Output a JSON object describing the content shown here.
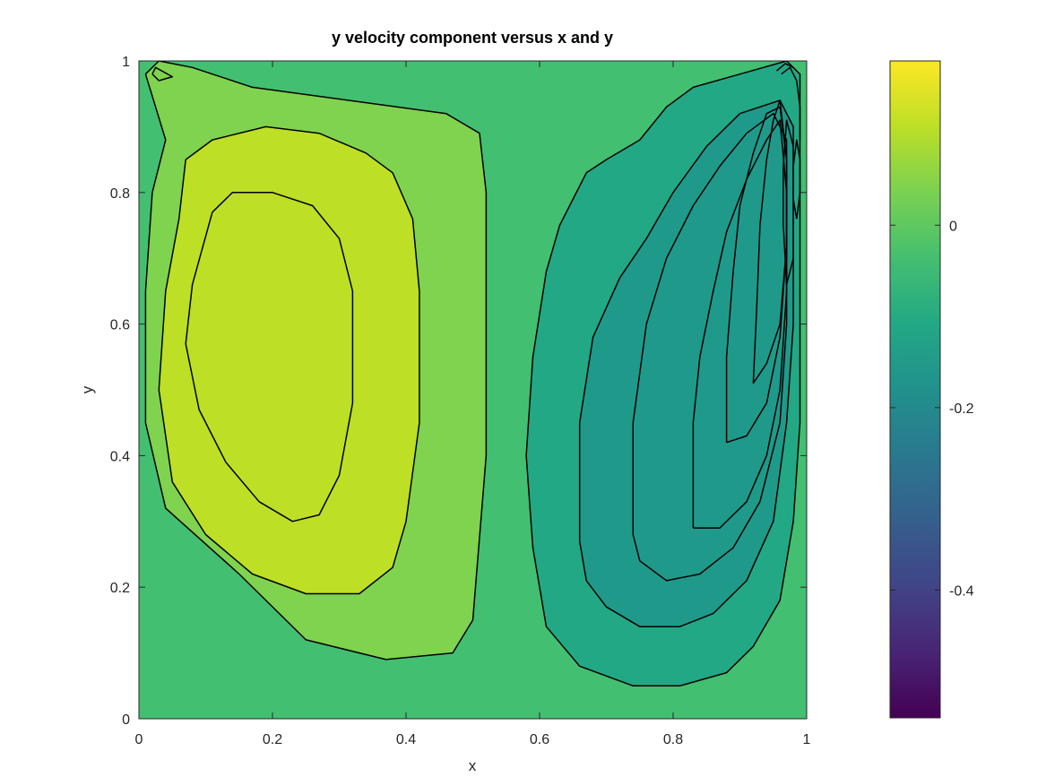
{
  "chart_data": {
    "type": "heatmap",
    "subtype": "filled-contour",
    "title": "y velocity component versus x and y",
    "xlabel": "x",
    "ylabel": "y",
    "xlim": [
      0,
      1
    ],
    "ylim": [
      0,
      1
    ],
    "xticks": [
      0,
      0.2,
      0.4,
      0.6,
      0.8,
      1
    ],
    "yticks": [
      0,
      0.2,
      0.4,
      0.6,
      0.8,
      1
    ],
    "xtick_labels": [
      "0",
      "0.2",
      "0.4",
      "0.6",
      "0.8",
      "1"
    ],
    "ytick_labels": [
      "0",
      "0.2",
      "0.4",
      "0.6",
      "0.8",
      "1"
    ],
    "colormap": "viridis",
    "colorbar": {
      "limits": [
        -0.54,
        0.18
      ],
      "ticks": [
        0,
        -0.2,
        -0.4
      ],
      "tick_labels": [
        "0",
        "-0.2",
        "-0.4"
      ]
    },
    "background_level_color": "#43bf71",
    "regions": [
      {
        "name": "positive-outer",
        "color": "#7fd34e",
        "points": [
          [
            0.01,
            0.98
          ],
          [
            0.03,
            1.0
          ],
          [
            0.08,
            0.99
          ],
          [
            0.17,
            0.96
          ],
          [
            0.46,
            0.92
          ],
          [
            0.51,
            0.89
          ],
          [
            0.52,
            0.8
          ],
          [
            0.52,
            0.4
          ],
          [
            0.5,
            0.15
          ],
          [
            0.47,
            0.1
          ],
          [
            0.37,
            0.09
          ],
          [
            0.25,
            0.12
          ],
          [
            0.15,
            0.22
          ],
          [
            0.04,
            0.32
          ],
          [
            0.01,
            0.45
          ],
          [
            0.01,
            0.65
          ],
          [
            0.02,
            0.8
          ],
          [
            0.04,
            0.88
          ],
          [
            0.01,
            0.98
          ]
        ]
      },
      {
        "name": "positive-mid",
        "color": "#bddf26",
        "points": [
          [
            0.07,
            0.85
          ],
          [
            0.11,
            0.88
          ],
          [
            0.19,
            0.9
          ],
          [
            0.27,
            0.89
          ],
          [
            0.34,
            0.86
          ],
          [
            0.38,
            0.83
          ],
          [
            0.41,
            0.76
          ],
          [
            0.42,
            0.65
          ],
          [
            0.42,
            0.45
          ],
          [
            0.4,
            0.3
          ],
          [
            0.38,
            0.23
          ],
          [
            0.33,
            0.19
          ],
          [
            0.25,
            0.19
          ],
          [
            0.17,
            0.22
          ],
          [
            0.1,
            0.28
          ],
          [
            0.05,
            0.36
          ],
          [
            0.03,
            0.5
          ],
          [
            0.04,
            0.65
          ],
          [
            0.06,
            0.76
          ],
          [
            0.07,
            0.85
          ]
        ]
      },
      {
        "name": "negative-outer",
        "color": "#22a884",
        "points": [
          [
            0.59,
            0.26
          ],
          [
            0.61,
            0.14
          ],
          [
            0.66,
            0.08
          ],
          [
            0.74,
            0.05
          ],
          [
            0.81,
            0.05
          ],
          [
            0.88,
            0.07
          ],
          [
            0.92,
            0.11
          ],
          [
            0.96,
            0.18
          ],
          [
            0.98,
            0.3
          ],
          [
            0.99,
            0.45
          ],
          [
            0.99,
            0.7
          ],
          [
            0.99,
            0.88
          ],
          [
            0.99,
            0.98
          ],
          [
            0.97,
            1.0
          ],
          [
            0.9,
            0.98
          ],
          [
            0.83,
            0.96
          ],
          [
            0.79,
            0.93
          ],
          [
            0.75,
            0.88
          ],
          [
            0.7,
            0.85
          ],
          [
            0.67,
            0.83
          ],
          [
            0.65,
            0.79
          ],
          [
            0.63,
            0.75
          ],
          [
            0.61,
            0.68
          ],
          [
            0.59,
            0.55
          ],
          [
            0.58,
            0.4
          ],
          [
            0.59,
            0.26
          ]
        ]
      },
      {
        "name": "negative-mid",
        "color": "#1f9a8a",
        "points": [
          [
            0.66,
            0.27
          ],
          [
            0.67,
            0.21
          ],
          [
            0.7,
            0.17
          ],
          [
            0.75,
            0.14
          ],
          [
            0.81,
            0.14
          ],
          [
            0.86,
            0.16
          ],
          [
            0.91,
            0.21
          ],
          [
            0.95,
            0.3
          ],
          [
            0.97,
            0.45
          ],
          [
            0.98,
            0.6
          ],
          [
            0.98,
            0.75
          ],
          [
            0.98,
            0.9
          ],
          [
            0.96,
            0.94
          ],
          [
            0.9,
            0.92
          ],
          [
            0.85,
            0.87
          ],
          [
            0.8,
            0.8
          ],
          [
            0.76,
            0.73
          ],
          [
            0.72,
            0.67
          ],
          [
            0.68,
            0.58
          ],
          [
            0.66,
            0.45
          ],
          [
            0.66,
            0.27
          ]
        ]
      }
    ],
    "contour_lines": [
      {
        "name": "contour-pos-1",
        "points": [
          [
            0.01,
            0.98
          ],
          [
            0.03,
            1.0
          ],
          [
            0.08,
            0.99
          ],
          [
            0.17,
            0.96
          ],
          [
            0.46,
            0.92
          ],
          [
            0.51,
            0.89
          ],
          [
            0.52,
            0.8
          ],
          [
            0.52,
            0.4
          ],
          [
            0.5,
            0.15
          ],
          [
            0.47,
            0.1
          ],
          [
            0.37,
            0.09
          ],
          [
            0.25,
            0.12
          ],
          [
            0.15,
            0.22
          ],
          [
            0.04,
            0.32
          ],
          [
            0.01,
            0.45
          ],
          [
            0.01,
            0.65
          ],
          [
            0.02,
            0.8
          ],
          [
            0.04,
            0.88
          ],
          [
            0.01,
            0.98
          ]
        ]
      },
      {
        "name": "contour-pos-2",
        "points": [
          [
            0.07,
            0.85
          ],
          [
            0.11,
            0.88
          ],
          [
            0.19,
            0.9
          ],
          [
            0.27,
            0.89
          ],
          [
            0.34,
            0.86
          ],
          [
            0.38,
            0.83
          ],
          [
            0.41,
            0.76
          ],
          [
            0.42,
            0.65
          ],
          [
            0.42,
            0.45
          ],
          [
            0.4,
            0.3
          ],
          [
            0.38,
            0.23
          ],
          [
            0.33,
            0.19
          ],
          [
            0.25,
            0.19
          ],
          [
            0.17,
            0.22
          ],
          [
            0.1,
            0.28
          ],
          [
            0.05,
            0.36
          ],
          [
            0.03,
            0.5
          ],
          [
            0.04,
            0.65
          ],
          [
            0.06,
            0.76
          ],
          [
            0.07,
            0.85
          ]
        ]
      },
      {
        "name": "contour-pos-3",
        "points": [
          [
            0.11,
            0.77
          ],
          [
            0.14,
            0.8
          ],
          [
            0.2,
            0.8
          ],
          [
            0.26,
            0.78
          ],
          [
            0.3,
            0.73
          ],
          [
            0.32,
            0.65
          ],
          [
            0.32,
            0.48
          ],
          [
            0.3,
            0.37
          ],
          [
            0.27,
            0.31
          ],
          [
            0.23,
            0.3
          ],
          [
            0.18,
            0.33
          ],
          [
            0.13,
            0.39
          ],
          [
            0.09,
            0.47
          ],
          [
            0.07,
            0.57
          ],
          [
            0.08,
            0.66
          ],
          [
            0.11,
            0.77
          ]
        ]
      },
      {
        "name": "contour-corner",
        "points": [
          [
            0.02,
            0.98
          ],
          [
            0.03,
            0.97
          ],
          [
            0.05,
            0.976
          ],
          [
            0.025,
            0.99
          ],
          [
            0.02,
            0.98
          ]
        ]
      },
      {
        "name": "contour-neg-1",
        "points": [
          [
            0.59,
            0.26
          ],
          [
            0.61,
            0.14
          ],
          [
            0.66,
            0.08
          ],
          [
            0.74,
            0.05
          ],
          [
            0.81,
            0.05
          ],
          [
            0.88,
            0.07
          ],
          [
            0.92,
            0.11
          ],
          [
            0.96,
            0.18
          ],
          [
            0.98,
            0.3
          ],
          [
            0.99,
            0.45
          ],
          [
            0.99,
            0.7
          ],
          [
            0.99,
            0.88
          ],
          [
            0.99,
            0.98
          ],
          [
            0.97,
            1.0
          ],
          [
            0.9,
            0.98
          ],
          [
            0.83,
            0.96
          ],
          [
            0.79,
            0.93
          ],
          [
            0.75,
            0.88
          ],
          [
            0.7,
            0.85
          ],
          [
            0.67,
            0.83
          ],
          [
            0.65,
            0.79
          ],
          [
            0.63,
            0.75
          ],
          [
            0.61,
            0.68
          ],
          [
            0.59,
            0.55
          ],
          [
            0.58,
            0.4
          ],
          [
            0.59,
            0.26
          ]
        ]
      },
      {
        "name": "contour-neg-2",
        "points": [
          [
            0.66,
            0.27
          ],
          [
            0.67,
            0.21
          ],
          [
            0.7,
            0.17
          ],
          [
            0.75,
            0.14
          ],
          [
            0.81,
            0.14
          ],
          [
            0.86,
            0.16
          ],
          [
            0.91,
            0.21
          ],
          [
            0.95,
            0.3
          ],
          [
            0.97,
            0.45
          ],
          [
            0.98,
            0.6
          ],
          [
            0.98,
            0.75
          ],
          [
            0.98,
            0.9
          ],
          [
            0.96,
            0.94
          ],
          [
            0.9,
            0.92
          ],
          [
            0.85,
            0.87
          ],
          [
            0.8,
            0.8
          ],
          [
            0.76,
            0.73
          ],
          [
            0.72,
            0.67
          ],
          [
            0.68,
            0.58
          ],
          [
            0.66,
            0.45
          ],
          [
            0.66,
            0.27
          ]
        ]
      },
      {
        "name": "contour-neg-3",
        "points": [
          [
            0.74,
            0.28
          ],
          [
            0.75,
            0.24
          ],
          [
            0.79,
            0.21
          ],
          [
            0.84,
            0.22
          ],
          [
            0.89,
            0.26
          ],
          [
            0.93,
            0.33
          ],
          [
            0.96,
            0.45
          ],
          [
            0.97,
            0.6
          ],
          [
            0.97,
            0.75
          ],
          [
            0.97,
            0.88
          ],
          [
            0.95,
            0.92
          ],
          [
            0.91,
            0.89
          ],
          [
            0.87,
            0.84
          ],
          [
            0.83,
            0.78
          ],
          [
            0.79,
            0.7
          ],
          [
            0.76,
            0.6
          ],
          [
            0.74,
            0.45
          ],
          [
            0.74,
            0.28
          ]
        ]
      },
      {
        "name": "contour-neg-4",
        "points": [
          [
            0.83,
            0.29
          ],
          [
            0.87,
            0.29
          ],
          [
            0.91,
            0.33
          ],
          [
            0.94,
            0.4
          ],
          [
            0.96,
            0.5
          ],
          [
            0.97,
            0.65
          ],
          [
            0.97,
            0.8
          ],
          [
            0.96,
            0.91
          ],
          [
            0.94,
            0.88
          ],
          [
            0.91,
            0.82
          ],
          [
            0.88,
            0.74
          ],
          [
            0.86,
            0.65
          ],
          [
            0.84,
            0.55
          ],
          [
            0.83,
            0.45
          ],
          [
            0.83,
            0.29
          ]
        ]
      },
      {
        "name": "contour-neg-5",
        "points": [
          [
            0.88,
            0.42
          ],
          [
            0.91,
            0.43
          ],
          [
            0.94,
            0.48
          ],
          [
            0.96,
            0.58
          ],
          [
            0.97,
            0.72
          ],
          [
            0.97,
            0.85
          ],
          [
            0.96,
            0.93
          ],
          [
            0.94,
            0.92
          ],
          [
            0.92,
            0.86
          ],
          [
            0.9,
            0.78
          ],
          [
            0.89,
            0.68
          ],
          [
            0.88,
            0.55
          ],
          [
            0.88,
            0.42
          ]
        ]
      },
      {
        "name": "contour-neg-6",
        "points": [
          [
            0.92,
            0.51
          ],
          [
            0.94,
            0.54
          ],
          [
            0.96,
            0.6
          ],
          [
            0.97,
            0.72
          ],
          [
            0.97,
            0.85
          ],
          [
            0.96,
            0.94
          ],
          [
            0.95,
            0.91
          ],
          [
            0.94,
            0.85
          ],
          [
            0.93,
            0.75
          ],
          [
            0.925,
            0.62
          ],
          [
            0.92,
            0.51
          ]
        ]
      },
      {
        "name": "contour-neg-7",
        "points": [
          [
            0.97,
            0.66
          ],
          [
            0.98,
            0.7
          ],
          [
            0.98,
            0.78
          ],
          [
            0.98,
            0.87
          ],
          [
            0.97,
            0.91
          ],
          [
            0.965,
            0.84
          ],
          [
            0.965,
            0.75
          ],
          [
            0.97,
            0.66
          ]
        ]
      },
      {
        "name": "contour-neg-8",
        "points": [
          [
            0.985,
            0.76
          ],
          [
            0.99,
            0.8
          ],
          [
            0.99,
            0.85
          ],
          [
            0.985,
            0.88
          ],
          [
            0.98,
            0.84
          ],
          [
            0.98,
            0.79
          ],
          [
            0.985,
            0.76
          ]
        ]
      },
      {
        "name": "contour-neg-9",
        "points": [
          [
            0.962,
            0.98
          ],
          [
            0.975,
            0.99
          ],
          [
            0.985,
            0.97
          ],
          [
            0.99,
            0.93
          ],
          [
            0.99,
            0.88
          ]
        ]
      },
      {
        "name": "contour-neg-10",
        "points": [
          [
            0.955,
            0.985
          ],
          [
            0.968,
            0.996
          ],
          [
            0.98,
            0.99
          ]
        ]
      }
    ]
  }
}
